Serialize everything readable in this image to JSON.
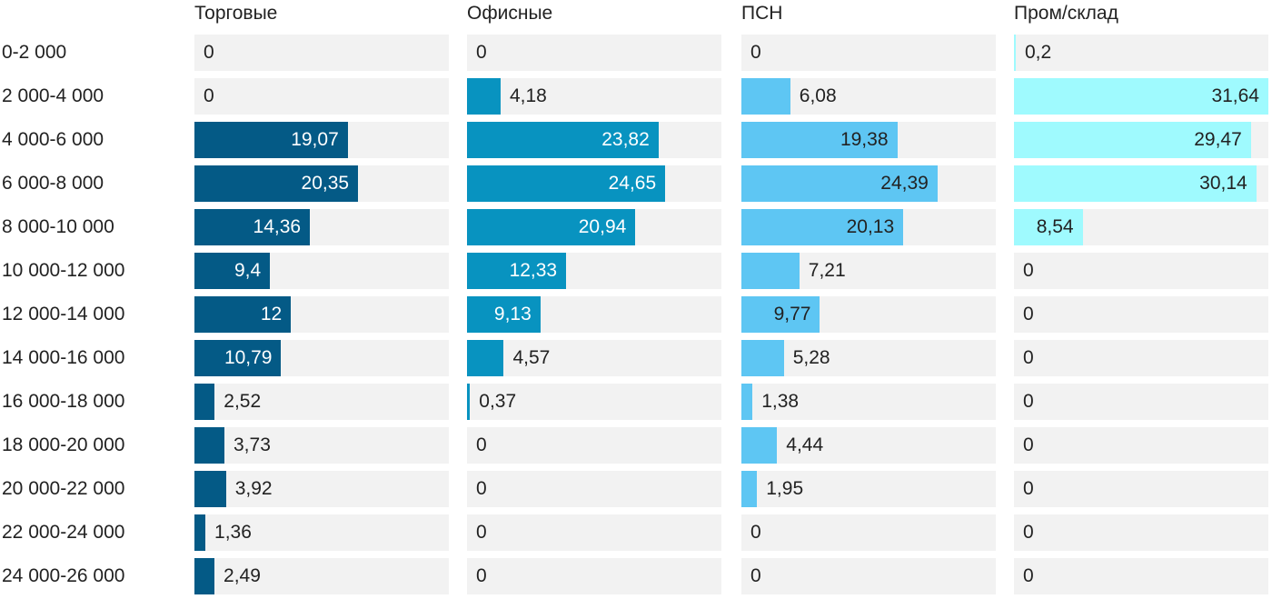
{
  "chart_data": {
    "type": "bar",
    "orientation": "horizontal",
    "layout": "small-multiples",
    "categories": [
      "0-2 000",
      "2 000-4 000",
      "4 000-6 000",
      "6 000-8 000",
      "8 000-10 000",
      "10 000-12 000",
      "12 000-14 000",
      "14 000-16 000",
      "16 000-18 000",
      "18 000-20 000",
      "20 000-22 000",
      "22 000-24 000",
      "24 000-26 000"
    ],
    "xlim": [
      0,
      36
    ],
    "grid": false,
    "legend": "none",
    "series": [
      {
        "name": "Торговые",
        "color": "#045a86",
        "values": [
          0,
          0,
          19.07,
          20.35,
          14.36,
          9.4,
          12,
          10.79,
          2.52,
          3.73,
          3.92,
          1.36,
          2.49
        ],
        "labels": [
          "0",
          "0",
          "19,07",
          "20,35",
          "14,36",
          "9,4",
          "12",
          "10,79",
          "2,52",
          "3,73",
          "3,92",
          "1,36",
          "2,49"
        ]
      },
      {
        "name": "Офисные",
        "color": "#0893c0",
        "values": [
          0,
          4.18,
          23.82,
          24.65,
          20.94,
          12.33,
          9.13,
          4.57,
          0.37,
          0,
          0,
          0,
          0
        ],
        "labels": [
          "0",
          "4,18",
          "23,82",
          "24,65",
          "20,94",
          "12,33",
          "9,13",
          "4,57",
          "0,37",
          "0",
          "0",
          "0",
          "0"
        ]
      },
      {
        "name": "ПСН",
        "color": "#5ec6f3",
        "values": [
          0,
          6.08,
          19.38,
          24.39,
          20.13,
          7.21,
          9.77,
          5.28,
          1.38,
          4.44,
          1.95,
          0,
          0
        ],
        "labels": [
          "0",
          "6,08",
          "19,38",
          "24,39",
          "20,13",
          "7,21",
          "9,77",
          "5,28",
          "1,38",
          "4,44",
          "1,95",
          "0",
          "0"
        ]
      },
      {
        "name": "Пром/склад",
        "color": "#9ffafe",
        "values": [
          0.2,
          31.64,
          29.47,
          30.14,
          8.54,
          0,
          0,
          0,
          0,
          0,
          0,
          0,
          0
        ],
        "labels": [
          "0,2",
          "31,64",
          "29,47",
          "30,14",
          "8,54",
          "0",
          "0",
          "0",
          "0",
          "0",
          "0",
          "0",
          "0"
        ]
      }
    ]
  }
}
